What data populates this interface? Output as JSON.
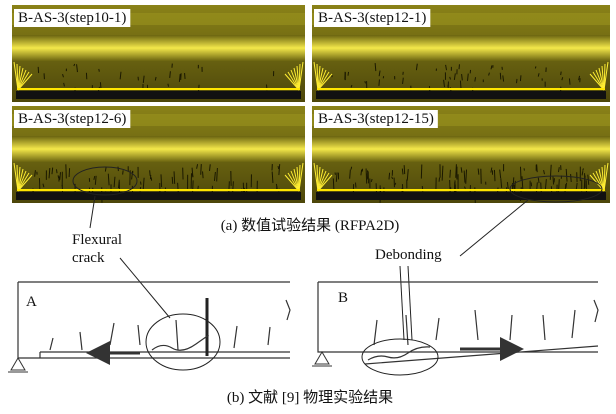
{
  "panels": [
    {
      "label": "B-AS-3(step10-1)"
    },
    {
      "label": "B-AS-3(step12-1)"
    },
    {
      "label": "B-AS-3(step12-6)"
    },
    {
      "label": "B-AS-3(step12-15)"
    }
  ],
  "caption_a": "(a) 数值试验结果 (RFPA2D)",
  "annotations": {
    "flexural_crack": [
      "Flexural",
      "crack"
    ],
    "debonding": "Debonding"
  },
  "specimens": [
    "A",
    "B"
  ],
  "caption_b": "(b) 文献 [9] 物理实验结果"
}
